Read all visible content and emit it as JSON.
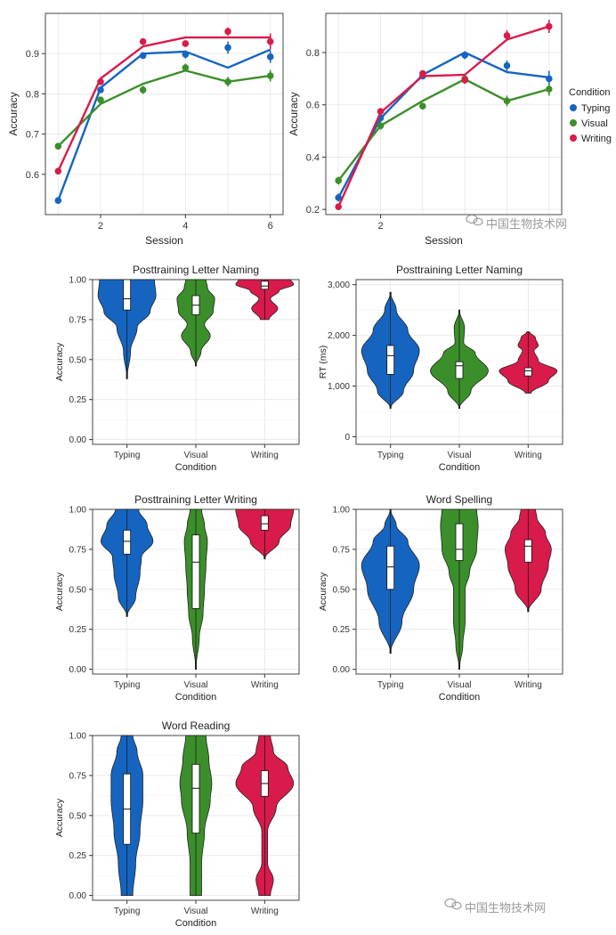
{
  "colors": {
    "Typing": "#1565c0",
    "Visual": "#3b8f2a",
    "Writing": "#d81b4a",
    "grid": "#e6e6e6"
  },
  "watermark": "中国生物技术网",
  "chart_data": [
    {
      "type": "line",
      "xlabel": "Session",
      "ylabel": "Accuracy",
      "xlim": [
        0.7,
        6.3
      ],
      "ylim": [
        0.5,
        1.0
      ],
      "xticks": [
        "2",
        "4",
        "6"
      ],
      "yticks": [
        "0.6",
        "0.7",
        "0.8",
        "0.9"
      ],
      "x": [
        1,
        2,
        3,
        4,
        5,
        6
      ],
      "grid": true,
      "series": [
        {
          "name": "Typing",
          "points": [
            0.535,
            0.81,
            0.895,
            0.898,
            0.915,
            0.892
          ],
          "errors": [
            0.008,
            0.008,
            0.008,
            0.01,
            0.015,
            0.015
          ],
          "fit": [
            0.535,
            0.815,
            0.9,
            0.905,
            0.865,
            0.91
          ]
        },
        {
          "name": "Visual",
          "points": [
            0.67,
            0.785,
            0.81,
            0.865,
            0.83,
            0.845
          ],
          "errors": [
            0.008,
            0.008,
            0.01,
            0.01,
            0.012,
            0.014
          ],
          "fit": [
            0.67,
            0.775,
            0.825,
            0.858,
            0.83,
            0.845
          ]
        },
        {
          "name": "Writing",
          "points": [
            0.608,
            0.83,
            0.93,
            0.925,
            0.955,
            0.93
          ],
          "errors": [
            0.008,
            0.008,
            0.006,
            0.006,
            0.01,
            0.02
          ],
          "fit": [
            0.608,
            0.838,
            0.918,
            0.94,
            0.94,
            0.94
          ]
        }
      ]
    },
    {
      "type": "line",
      "xlabel": "Session",
      "ylabel": "Accuracy",
      "xlim": [
        0.7,
        6.3
      ],
      "ylim": [
        0.18,
        0.95
      ],
      "xticks": [
        "2"
      ],
      "yticks": [
        "0.2",
        "0.4",
        "0.6",
        "0.8"
      ],
      "x": [
        1,
        2,
        3,
        4,
        5,
        6
      ],
      "grid": true,
      "legend": {
        "title": "Condition",
        "entries": [
          "Typing",
          "Visual",
          "Writing"
        ],
        "position": "right"
      },
      "series": [
        {
          "name": "Typing",
          "points": [
            0.245,
            0.55,
            0.71,
            0.79,
            0.75,
            0.7
          ],
          "errors": [
            0.015,
            0.015,
            0.012,
            0.015,
            0.02,
            0.03
          ],
          "fit": [
            0.245,
            0.548,
            0.715,
            0.8,
            0.725,
            0.705
          ]
        },
        {
          "name": "Visual",
          "points": [
            0.31,
            0.52,
            0.595,
            0.7,
            0.615,
            0.66
          ],
          "errors": [
            0.015,
            0.015,
            0.012,
            0.012,
            0.02,
            0.025
          ],
          "fit": [
            0.31,
            0.52,
            0.615,
            0.698,
            0.615,
            0.66
          ]
        },
        {
          "name": "Writing",
          "points": [
            0.21,
            0.575,
            0.72,
            0.695,
            0.865,
            0.9
          ],
          "errors": [
            0.012,
            0.012,
            0.012,
            0.015,
            0.02,
            0.025
          ],
          "fit": [
            0.21,
            0.57,
            0.71,
            0.715,
            0.85,
            0.9
          ]
        }
      ]
    },
    {
      "type": "violin",
      "title": "Posttraining Letter Naming",
      "ylabel": "Accuracy",
      "xlabel": "Condition",
      "categories": [
        "Typing",
        "Visual",
        "Writing"
      ],
      "ylim": [
        -0.03,
        1.0
      ],
      "yticks": [
        "0.00",
        "0.25",
        "0.50",
        "0.75",
        "1.00"
      ],
      "ytick_values": [
        0,
        0.25,
        0.5,
        0.75,
        1.0
      ],
      "violins": [
        {
          "range": [
            0.38,
            1.0
          ],
          "box": [
            0.81,
            0.88,
            1.0
          ],
          "profile": [
            [
              0.38,
              0
            ],
            [
              0.55,
              0.12
            ],
            [
              0.7,
              0.35
            ],
            [
              0.8,
              0.8
            ],
            [
              0.9,
              1.0
            ],
            [
              1.0,
              0.95
            ]
          ]
        },
        {
          "range": [
            0.46,
            1.0
          ],
          "box": [
            0.78,
            0.84,
            0.9
          ],
          "profile": [
            [
              0.46,
              0
            ],
            [
              0.55,
              0.18
            ],
            [
              0.65,
              0.5
            ],
            [
              0.72,
              0.3
            ],
            [
              0.8,
              0.6
            ],
            [
              0.88,
              0.65
            ],
            [
              0.95,
              0.4
            ],
            [
              1.0,
              0.35
            ]
          ]
        },
        {
          "range": [
            0.75,
            1.0
          ],
          "box": [
            0.94,
            0.96,
            0.99
          ],
          "profile": [
            [
              0.75,
              0.15
            ],
            [
              0.82,
              0.45
            ],
            [
              0.88,
              0.2
            ],
            [
              0.93,
              0.5
            ],
            [
              0.97,
              1.0
            ],
            [
              1.0,
              0.9
            ]
          ]
        }
      ]
    },
    {
      "type": "violin",
      "title": "Posttraining Letter Naming",
      "ylabel": "RT (ms)",
      "xlabel": "Condition",
      "categories": [
        "Typing",
        "Visual",
        "Writing"
      ],
      "ylim": [
        -150,
        3100
      ],
      "yticks": [
        "0",
        "1,000",
        "2,000",
        "3,000"
      ],
      "ytick_values": [
        0,
        1000,
        2000,
        3000
      ],
      "violins": [
        {
          "range": [
            560,
            2850
          ],
          "box": [
            1230,
            1600,
            1800
          ],
          "profile": [
            [
              560,
              0
            ],
            [
              900,
              0.45
            ],
            [
              1300,
              0.8
            ],
            [
              1700,
              1.0
            ],
            [
              2100,
              0.6
            ],
            [
              2500,
              0.2
            ],
            [
              2850,
              0
            ]
          ]
        },
        {
          "range": [
            560,
            2500
          ],
          "box": [
            1150,
            1400,
            1480
          ],
          "profile": [
            [
              560,
              0
            ],
            [
              900,
              0.4
            ],
            [
              1300,
              1.0
            ],
            [
              1650,
              0.55
            ],
            [
              1850,
              0.15
            ],
            [
              2150,
              0.18
            ],
            [
              2500,
              0
            ]
          ]
        },
        {
          "range": [
            860,
            2070
          ],
          "box": [
            1200,
            1300,
            1360
          ],
          "profile": [
            [
              860,
              0.1
            ],
            [
              1100,
              0.7
            ],
            [
              1300,
              1.0
            ],
            [
              1500,
              0.35
            ],
            [
              1700,
              0.2
            ],
            [
              1800,
              0.35
            ],
            [
              1950,
              0.25
            ],
            [
              2070,
              0.05
            ]
          ]
        }
      ]
    },
    {
      "type": "violin",
      "title": "Posttraining Letter Writing",
      "ylabel": "Accuracy",
      "xlabel": "Condition",
      "categories": [
        "Typing",
        "Visual",
        "Writing"
      ],
      "ylim": [
        -0.03,
        1.0
      ],
      "yticks": [
        "0.00",
        "0.25",
        "0.50",
        "0.75",
        "1.00"
      ],
      "ytick_values": [
        0,
        0.25,
        0.5,
        0.75,
        1.0
      ],
      "violins": [
        {
          "range": [
            0.33,
            1.0
          ],
          "box": [
            0.72,
            0.8,
            0.87
          ],
          "profile": [
            [
              0.33,
              0
            ],
            [
              0.45,
              0.3
            ],
            [
              0.6,
              0.45
            ],
            [
              0.7,
              0.5
            ],
            [
              0.8,
              0.9
            ],
            [
              0.9,
              0.7
            ],
            [
              1.0,
              0.4
            ]
          ]
        },
        {
          "range": [
            0.0,
            1.0
          ],
          "box": [
            0.38,
            0.67,
            0.84
          ],
          "profile": [
            [
              0.0,
              0
            ],
            [
              0.2,
              0.12
            ],
            [
              0.35,
              0.25
            ],
            [
              0.5,
              0.3
            ],
            [
              0.65,
              0.35
            ],
            [
              0.8,
              0.4
            ],
            [
              0.9,
              0.3
            ],
            [
              1.0,
              0.2
            ]
          ]
        },
        {
          "range": [
            0.69,
            1.0
          ],
          "box": [
            0.87,
            0.91,
            0.96
          ],
          "profile": [
            [
              0.69,
              0
            ],
            [
              0.8,
              0.5
            ],
            [
              0.9,
              0.9
            ],
            [
              1.0,
              1.0
            ]
          ]
        }
      ]
    },
    {
      "type": "violin",
      "title": "Word Spelling",
      "ylabel": "Accuracy",
      "xlabel": "Condition",
      "categories": [
        "Typing",
        "Visual",
        "Writing"
      ],
      "ylim": [
        -0.03,
        1.0
      ],
      "yticks": [
        "0.00",
        "0.25",
        "0.50",
        "0.75",
        "1.00"
      ],
      "ytick_values": [
        0,
        0.25,
        0.5,
        0.75,
        1.0
      ],
      "violins": [
        {
          "range": [
            0.1,
            1.0
          ],
          "box": [
            0.5,
            0.64,
            0.77
          ],
          "profile": [
            [
              0.1,
              0
            ],
            [
              0.3,
              0.4
            ],
            [
              0.5,
              0.8
            ],
            [
              0.65,
              1.0
            ],
            [
              0.8,
              0.6
            ],
            [
              0.9,
              0.2
            ],
            [
              1.0,
              0
            ]
          ]
        },
        {
          "range": [
            0.0,
            1.0
          ],
          "box": [
            0.68,
            0.75,
            0.91
          ],
          "profile": [
            [
              0.0,
              0
            ],
            [
              0.15,
              0.12
            ],
            [
              0.3,
              0.2
            ],
            [
              0.5,
              0.2
            ],
            [
              0.6,
              0.35
            ],
            [
              0.75,
              0.6
            ],
            [
              0.9,
              0.65
            ],
            [
              1.0,
              0.6
            ]
          ]
        },
        {
          "range": [
            0.36,
            1.0
          ],
          "box": [
            0.67,
            0.77,
            0.81
          ],
          "profile": [
            [
              0.36,
              0
            ],
            [
              0.5,
              0.45
            ],
            [
              0.65,
              0.7
            ],
            [
              0.75,
              0.8
            ],
            [
              0.85,
              0.6
            ],
            [
              0.95,
              0.3
            ],
            [
              1.0,
              0.25
            ]
          ]
        }
      ]
    },
    {
      "type": "violin",
      "title": "Word Reading",
      "ylabel": "Accuracy",
      "xlabel": "Condition",
      "categories": [
        "Typing",
        "Visual",
        "Writing"
      ],
      "ylim": [
        -0.03,
        1.0
      ],
      "yticks": [
        "0.00",
        "0.25",
        "0.50",
        "0.75",
        "1.00"
      ],
      "ytick_values": [
        0,
        0.25,
        0.5,
        0.75,
        1.0
      ],
      "violins": [
        {
          "range": [
            0.0,
            1.0
          ],
          "box": [
            0.32,
            0.54,
            0.76
          ],
          "profile": [
            [
              0.0,
              0.2
            ],
            [
              0.2,
              0.3
            ],
            [
              0.4,
              0.45
            ],
            [
              0.6,
              0.55
            ],
            [
              0.75,
              0.55
            ],
            [
              0.9,
              0.35
            ],
            [
              1.0,
              0.2
            ]
          ]
        },
        {
          "range": [
            0.0,
            1.0
          ],
          "box": [
            0.39,
            0.67,
            0.82
          ],
          "profile": [
            [
              0.0,
              0.2
            ],
            [
              0.2,
              0.2
            ],
            [
              0.4,
              0.3
            ],
            [
              0.6,
              0.5
            ],
            [
              0.7,
              0.55
            ],
            [
              0.85,
              0.45
            ],
            [
              1.0,
              0.35
            ]
          ]
        },
        {
          "range": [
            0.0,
            1.0
          ],
          "box": [
            0.62,
            0.7,
            0.78
          ],
          "profile": [
            [
              0.0,
              0.2
            ],
            [
              0.1,
              0.3
            ],
            [
              0.2,
              0.1
            ],
            [
              0.4,
              0.1
            ],
            [
              0.55,
              0.4
            ],
            [
              0.7,
              1.0
            ],
            [
              0.8,
              0.8
            ],
            [
              0.9,
              0.3
            ],
            [
              1.0,
              0.2
            ]
          ]
        }
      ]
    }
  ]
}
